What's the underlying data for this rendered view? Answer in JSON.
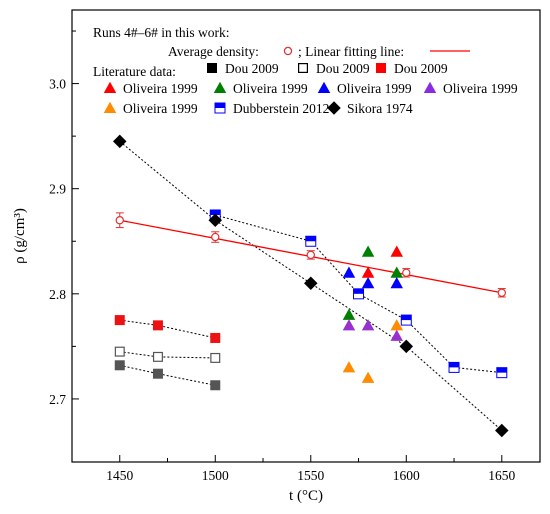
{
  "chart_data": {
    "type": "scatter",
    "xlabel": "t (°C)",
    "ylabel": "ρ (g/cm³)",
    "xlim": [
      1425,
      1670
    ],
    "ylim": [
      2.64,
      3.07
    ],
    "xticks": [
      1450,
      1500,
      1550,
      1600,
      1650
    ],
    "yticks": [
      2.7,
      2.8,
      2.9,
      3.0
    ],
    "xtick_labels": [
      "1450",
      "1500",
      "1550",
      "1600",
      "1650"
    ],
    "ytick_labels": [
      "2.7",
      "2.8",
      "2.9",
      "3.0"
    ],
    "grid": false,
    "legend": {
      "position": "top",
      "title": "Runs 4#–6# in this work:",
      "avg_label": "Average density:",
      "fit_label": "; Linear fitting line:",
      "lit_label": "Literature data:",
      "entries": [
        {
          "name": "Dou 2009",
          "color": "#000000",
          "marker": "square-filled"
        },
        {
          "name": "Dou 2009",
          "color": "#000000",
          "marker": "square-open"
        },
        {
          "name": "Dou 2009",
          "color": "#ff0000",
          "marker": "square-filled"
        },
        {
          "name": "Oliveira 1999",
          "color": "#ff0000",
          "marker": "triangle"
        },
        {
          "name": "Oliveira 1999",
          "color": "#008000",
          "marker": "triangle"
        },
        {
          "name": "Oliveira 1999",
          "color": "#0000ff",
          "marker": "triangle"
        },
        {
          "name": "Oliveira 1999",
          "color": "#8a2be2",
          "marker": "triangle"
        },
        {
          "name": "Oliveira 1999",
          "color": "#ff8c00",
          "marker": "triangle"
        },
        {
          "name": "Dubberstein 2012",
          "color": "#0000ff",
          "marker": "square-half"
        },
        {
          "name": "Sikora 1974",
          "color": "#000000",
          "marker": "diamond"
        }
      ]
    },
    "average_density": {
      "color": "#e03030",
      "x": [
        1450,
        1500,
        1550,
        1600,
        1650
      ],
      "y": [
        2.87,
        2.854,
        2.837,
        2.82,
        2.801
      ],
      "err": [
        0.007,
        0.005,
        0.004,
        0.004,
        0.004
      ]
    },
    "fit_line": {
      "color": "#ff0000",
      "x": [
        1450,
        1650
      ],
      "y": [
        2.87,
        2.801
      ]
    },
    "series": [
      {
        "color": "#555555",
        "marker": "square-filled",
        "dashed": true,
        "x": [
          1450,
          1470,
          1500
        ],
        "y": [
          2.732,
          2.724,
          2.713
        ]
      },
      {
        "color": "#555555",
        "marker": "square-open",
        "dashed": true,
        "x": [
          1450,
          1470,
          1500
        ],
        "y": [
          2.745,
          2.74,
          2.739
        ]
      },
      {
        "color": "#ee1111",
        "marker": "square-filled",
        "dashed": true,
        "x": [
          1450,
          1470,
          1500
        ],
        "y": [
          2.775,
          2.77,
          2.758
        ]
      },
      {
        "color": "#ff0000",
        "marker": "triangle",
        "dashed": false,
        "x": [
          1580,
          1595
        ],
        "y": [
          2.82,
          2.84
        ]
      },
      {
        "color": "#008000",
        "marker": "triangle",
        "dashed": false,
        "x": [
          1570,
          1580,
          1595
        ],
        "y": [
          2.78,
          2.84,
          2.82
        ]
      },
      {
        "color": "#0000ff",
        "marker": "triangle",
        "dashed": false,
        "x": [
          1570,
          1580,
          1595
        ],
        "y": [
          2.82,
          2.81,
          2.81
        ]
      },
      {
        "color": "#9932cc",
        "marker": "triangle",
        "dashed": false,
        "x": [
          1570,
          1580,
          1595
        ],
        "y": [
          2.77,
          2.77,
          2.76
        ]
      },
      {
        "color": "#ff8c00",
        "marker": "triangle",
        "dashed": false,
        "x": [
          1570,
          1580,
          1595
        ],
        "y": [
          2.73,
          2.72,
          2.77
        ]
      },
      {
        "color": "#0000ff",
        "marker": "square-half",
        "dashed": true,
        "x": [
          1500,
          1550,
          1575,
          1600,
          1625,
          1650
        ],
        "y": [
          2.875,
          2.85,
          2.8,
          2.775,
          2.73,
          2.725
        ]
      },
      {
        "color": "#000000",
        "marker": "diamond",
        "dashed": true,
        "x": [
          1450,
          1500,
          1550,
          1600,
          1650
        ],
        "y": [
          2.945,
          2.87,
          2.81,
          2.75,
          2.67
        ]
      }
    ]
  }
}
